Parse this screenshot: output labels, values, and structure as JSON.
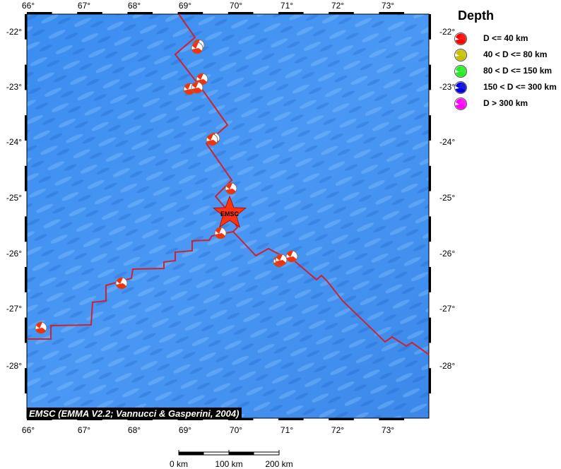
{
  "map": {
    "lon_ticks": [
      "66°",
      "67°",
      "68°",
      "69°",
      "70°",
      "71°",
      "72°",
      "73°"
    ],
    "lat_ticks": [
      "-22°",
      "-23°",
      "-24°",
      "-25°",
      "-26°",
      "-27°",
      "-28°"
    ],
    "epicenter_label": "EMSC",
    "credit": "EMSC (EMMA V2.2; Vannucci & Gasperini, 2004)",
    "ridge_color": "#cc2233",
    "ocean_color": "#3f8ff0",
    "epicenter_color": "#ff3311",
    "event_depth_class": "D <= 40 km"
  },
  "legend": {
    "title": "Depth",
    "items": [
      {
        "label": "D <= 40 km",
        "color": "#ff0000"
      },
      {
        "label": "40 < D <= 80 km",
        "color": "#c8c000"
      },
      {
        "label": "80 < D <= 150 km",
        "color": "#22ee22"
      },
      {
        "label": "150 < D <= 300 km",
        "color": "#0000dd"
      },
      {
        "label": "D > 300 km",
        "color": "#ff00ff"
      }
    ]
  },
  "scale_bar": {
    "labels": [
      "0 km",
      "100 km",
      "200 km"
    ]
  }
}
